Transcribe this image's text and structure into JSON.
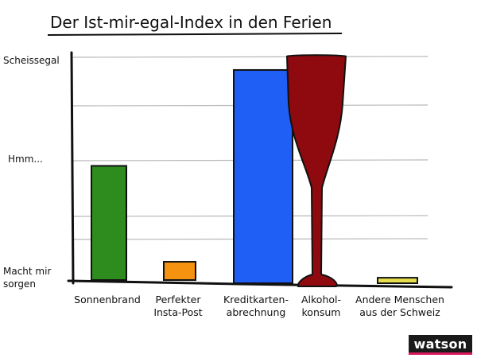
{
  "chart_data": {
    "type": "bar",
    "title": "Der Ist-mir-egal-Index in den Ferien",
    "xlabel": "",
    "ylabel": "",
    "y_scale": {
      "min": 0,
      "max": 5,
      "tick_labels": [
        {
          "value": 0,
          "lines": [
            "Macht mir",
            "sorgen"
          ]
        },
        {
          "value": 2.5,
          "lines": [
            "Hmm..."
          ]
        },
        {
          "value": 4.8,
          "lines": [
            "Scheissegal"
          ]
        }
      ]
    },
    "categories": [
      [
        "Sonnenbrand"
      ],
      [
        "Perfekter",
        "Insta-Post"
      ],
      [
        "Kreditkarten-",
        "abrechnung"
      ],
      [
        "Alkohol-",
        "konsum"
      ],
      [
        "Andere Menschen",
        "aus der Schweiz"
      ]
    ],
    "values": [
      2.5,
      0.4,
      4.6,
      4.9,
      0.05
    ],
    "colors": [
      "#2e8b1e",
      "#f59310",
      "#1f5ff5",
      "#8f0a0f",
      "#e8e04a"
    ],
    "shapes": [
      "bar",
      "bar",
      "bar",
      "wine-glass",
      "bar"
    ],
    "grid": true
  },
  "brand": {
    "logo_text": "watson",
    "colors": {
      "background": "#1a1a1a",
      "text": "#ffffff",
      "accent": "#d8185c"
    }
  }
}
